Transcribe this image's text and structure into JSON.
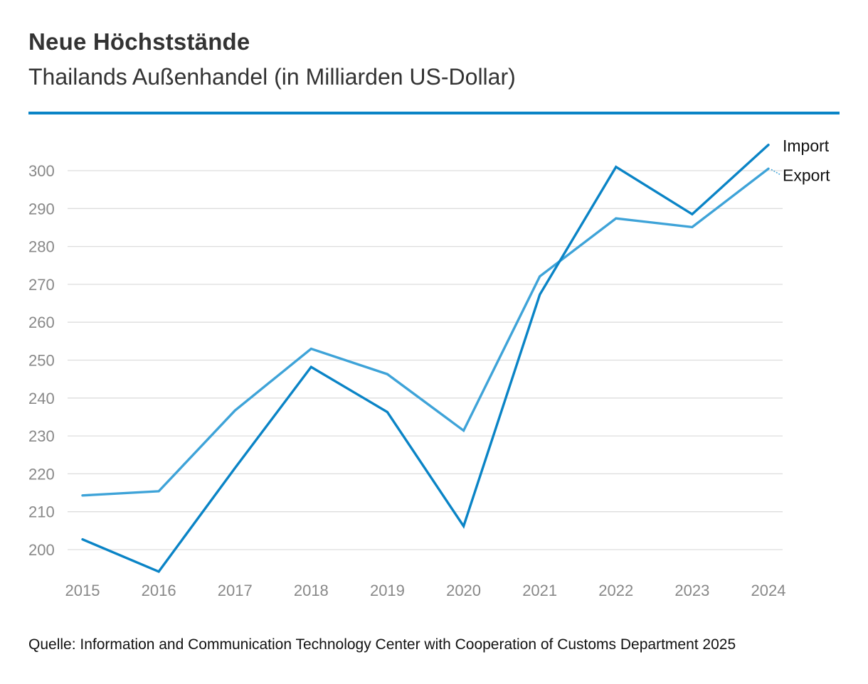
{
  "colors": {
    "import": "#0a84c6",
    "export": "#3ea3d8",
    "rule": "#0a84c6",
    "grid": "#dddddd",
    "tick": "#888888"
  },
  "chart_data": {
    "type": "line",
    "title": "Neue Höchststände",
    "subtitle": "Thailands Außenhandel (in Milliarden US-Dollar)",
    "xlabel": "",
    "ylabel": "",
    "categories": [
      "2015",
      "2016",
      "2017",
      "2018",
      "2019",
      "2020",
      "2021",
      "2022",
      "2023",
      "2024"
    ],
    "yticks": [
      200,
      210,
      220,
      230,
      240,
      250,
      260,
      270,
      280,
      290,
      300
    ],
    "ylim": [
      194,
      310
    ],
    "grid": true,
    "legend_position": "right-end",
    "series": [
      {
        "name": "Import",
        "color": "#0a84c6",
        "values": [
          202.7,
          194.2,
          221.5,
          248.2,
          236.3,
          206.2,
          267.3,
          301.0,
          288.5,
          306.8
        ]
      },
      {
        "name": "Export",
        "color": "#3ea3d8",
        "values": [
          214.3,
          215.4,
          236.7,
          253.0,
          246.3,
          231.4,
          272.1,
          287.4,
          285.1,
          300.5
        ]
      }
    ]
  },
  "footer": {
    "source": "Quelle: Information and Communication Technology Center with Cooperation of Customs Department 2025"
  }
}
